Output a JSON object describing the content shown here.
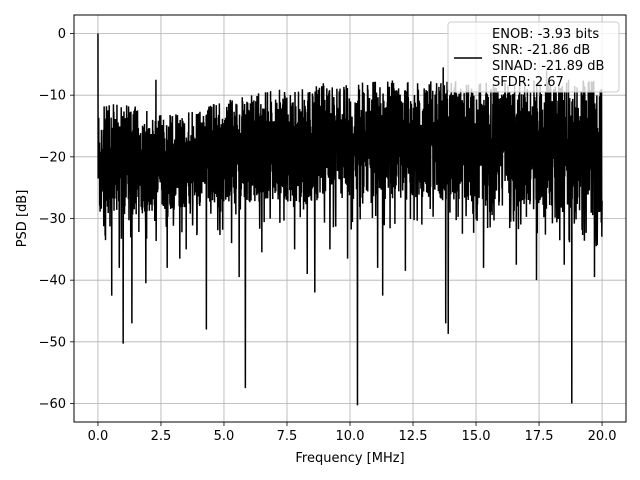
{
  "chart_data": {
    "type": "line",
    "title": "",
    "xlabel": "Frequency [MHz]",
    "ylabel": "PSD [dB]",
    "xlim": [
      -0.95,
      20.95
    ],
    "ylim": [
      -63.0,
      3.0
    ],
    "xticks": [
      0.0,
      2.5,
      5.0,
      7.5,
      10.0,
      12.5,
      15.0,
      17.5,
      20.0
    ],
    "xtick_labels": [
      "0.0",
      "2.5",
      "5.0",
      "7.5",
      "10.0",
      "12.5",
      "15.0",
      "17.5",
      "20.0"
    ],
    "yticks": [
      0,
      -10,
      -20,
      -30,
      -40,
      -50,
      -60
    ],
    "ytick_labels": [
      "0",
      "−10",
      "−20",
      "−30",
      "−40",
      "−50",
      "−60"
    ],
    "grid": true,
    "legend_position": "top-right",
    "legend_lines": [
      "ENOB: -3.93 bits",
      "SNR: -21.86 dB",
      "SINAD: -21.89 dB",
      "SFDR: 2.67"
    ],
    "series_color": "#000000",
    "series": [
      {
        "name": "ENOB: -3.93 bits",
        "band_upper": [
          -12,
          -11,
          -12.5,
          -13,
          -12,
          -11,
          -10,
          -9,
          -8.5,
          -8,
          -8,
          -7.8,
          -7.5,
          -7.5,
          -7.5,
          -7.8,
          -8,
          -7.5,
          -7.5,
          -7.3,
          -7.5
        ],
        "band_lower": [
          -30,
          -30,
          -29,
          -28.5,
          -28,
          -28,
          -27.5,
          -27,
          -27.5,
          -27,
          -27,
          -27,
          -27,
          -27,
          -27.5,
          -28,
          -28,
          -28,
          -28.5,
          -29,
          -30
        ],
        "peaks": [
          {
            "x": 0.0,
            "y": 0.0
          },
          {
            "x": 2.3,
            "y": -7.5
          },
          {
            "x": 13.7,
            "y": -5.5
          },
          {
            "x": 17.8,
            "y": -6.0
          }
        ],
        "dips": [
          {
            "x": 0.3,
            "y": -33.5
          },
          {
            "x": 0.55,
            "y": -42.5
          },
          {
            "x": 0.85,
            "y": -38.0
          },
          {
            "x": 1.0,
            "y": -50.3
          },
          {
            "x": 1.35,
            "y": -47.0
          },
          {
            "x": 1.9,
            "y": -40.5
          },
          {
            "x": 2.75,
            "y": -38.0
          },
          {
            "x": 3.25,
            "y": -36.5
          },
          {
            "x": 3.5,
            "y": -35.0
          },
          {
            "x": 4.3,
            "y": -48.0
          },
          {
            "x": 5.3,
            "y": -34.0
          },
          {
            "x": 5.6,
            "y": -39.5
          },
          {
            "x": 5.85,
            "y": -57.5
          },
          {
            "x": 6.5,
            "y": -35.5
          },
          {
            "x": 7.8,
            "y": -35.0
          },
          {
            "x": 8.3,
            "y": -39.0
          },
          {
            "x": 8.6,
            "y": -42.0
          },
          {
            "x": 9.2,
            "y": -35.0
          },
          {
            "x": 9.9,
            "y": -36.5
          },
          {
            "x": 10.3,
            "y": -60.3
          },
          {
            "x": 11.1,
            "y": -38.0
          },
          {
            "x": 11.3,
            "y": -42.5
          },
          {
            "x": 12.2,
            "y": -38.5
          },
          {
            "x": 13.8,
            "y": -47.0
          },
          {
            "x": 13.9,
            "y": -48.7
          },
          {
            "x": 15.3,
            "y": -38.0
          },
          {
            "x": 16.6,
            "y": -37.5
          },
          {
            "x": 17.4,
            "y": -40.0
          },
          {
            "x": 18.5,
            "y": -37.5
          },
          {
            "x": 18.8,
            "y": -60.0
          },
          {
            "x": 19.7,
            "y": -39.5
          }
        ]
      }
    ]
  }
}
